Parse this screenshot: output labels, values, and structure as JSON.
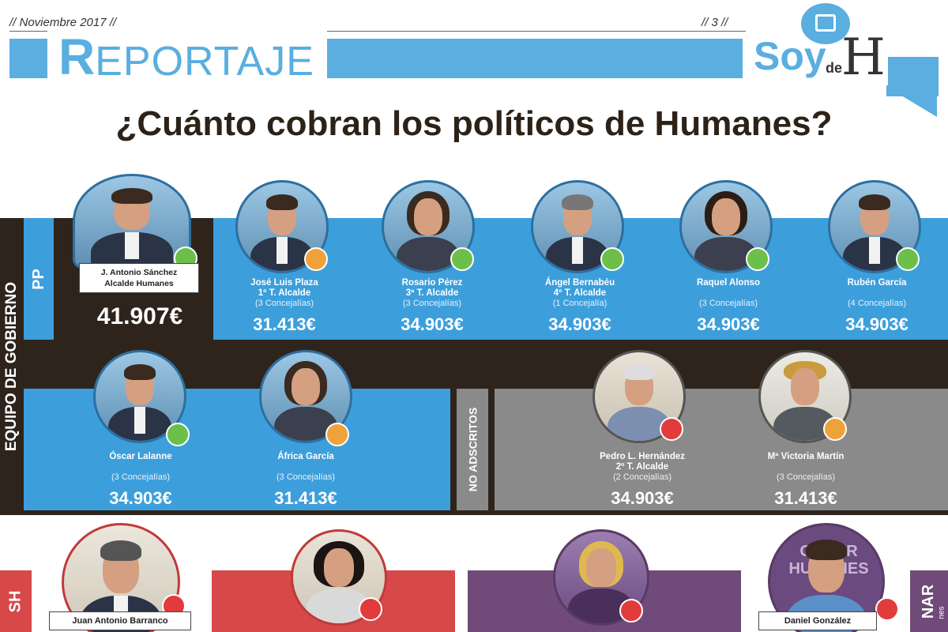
{
  "header": {
    "issue_date": "// Noviembre 2017 //",
    "page_number": "// 3 //",
    "section_initial": "R",
    "section_rest": "EPORTAJE",
    "logo": {
      "soy": "Soy",
      "de": "de",
      "h": "H"
    }
  },
  "headline": "¿Cuánto cobran los políticos de Humanes?",
  "labels": {
    "equipo": "EQUIPO DE GOBIERNO",
    "party": "PP",
    "no_adscritos": "NO ADSCRITOS",
    "psoe_partial": "SH",
    "right_partial": "NAR",
    "right_partial_small": "nes"
  },
  "colors": {
    "blue": "#3c9fdc",
    "dark": "#2e241c",
    "grey": "#8a8a8a",
    "red": "#d74848",
    "purple": "#704b7a",
    "status_green": "#6cc04a",
    "status_orange": "#f0a23a",
    "status_red": "#e23b3b"
  },
  "mayor": {
    "name": "J. Antonio Sánchez",
    "role": "Alcalde Humanes",
    "salary": "41.907€",
    "status": "green"
  },
  "row1": [
    {
      "name": "José Luis Plaza",
      "role": "1º T. Alcalde",
      "concejalias": "(3 Concejalías)",
      "salary": "31.413€",
      "status": "orange"
    },
    {
      "name": "Rosario Pérez",
      "role": "3ª T. Alcalde",
      "concejalias": "(3 Concejalías)",
      "salary": "34.903€",
      "status": "green"
    },
    {
      "name": "Ángel Bernabéu",
      "role": "4º T. Alcalde",
      "concejalias": "(1 Concejalía)",
      "salary": "34.903€",
      "status": "green"
    },
    {
      "name": "Raquel Alonso",
      "role": "",
      "concejalias": "(3 Concejalías)",
      "salary": "34.903€",
      "status": "green"
    },
    {
      "name": "Rubén García",
      "role": "",
      "concejalias": "(4 Concejalías)",
      "salary": "34.903€",
      "status": "green"
    }
  ],
  "row2": [
    {
      "name": "Óscar Lalanne",
      "role": "",
      "concejalias": "(3 Concejalías)",
      "salary": "34.903€",
      "status": "green"
    },
    {
      "name": "África García",
      "role": "",
      "concejalias": "(3 Concejalías)",
      "salary": "31.413€",
      "status": "orange"
    }
  ],
  "no_adscritos": [
    {
      "name": "Pedro L. Hernández",
      "role": "2º T. Alcalde",
      "concejalias": "(2 Concejalías)",
      "salary": "34.903€",
      "status": "red"
    },
    {
      "name": "Mª Victoria Martín",
      "role": "",
      "concejalias": "(3 Concejalías)",
      "salary": "31.413€",
      "status": "orange"
    }
  ],
  "bottom": [
    {
      "name": "Juan Antonio Barranco",
      "status": "red"
    },
    {
      "name": "",
      "status": "red"
    },
    {
      "name": "",
      "status": "red"
    },
    {
      "name": "Daniel González",
      "status": "red"
    }
  ],
  "poster_text": "GANAR HUMANES"
}
